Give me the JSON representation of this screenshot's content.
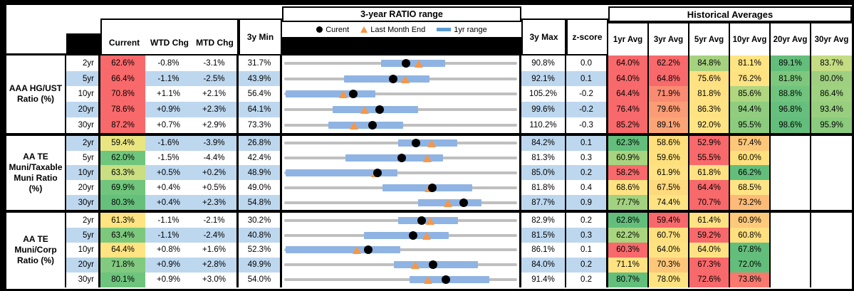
{
  "header": {
    "range_title": "3-year RATIO range",
    "hist_title": "Historical Averages",
    "left_columns": [
      "Current",
      "WTD Chg",
      "MTD Chg"
    ],
    "min_label": "3y Min",
    "max_label": "3y Max",
    "z_label": "z-score",
    "avg_columns": [
      "1yr Avg",
      "3yr Avg",
      "5yr Avg",
      "10yr Avg",
      "20yr Avg",
      "30yr Avg"
    ],
    "legend": {
      "current": "Curent",
      "last_month": "Last Month End",
      "range": "1yr range"
    }
  },
  "colors": {
    "stripe_blue": "#BDD7EE",
    "heat_red": "#F8696B",
    "heat_yellow": "#FFE383",
    "heat_green": "#63BE7B",
    "bar_blue": "#8FB4E3",
    "legend_bar_blue": "#5B9BD5",
    "marker_orange": "#F79646",
    "range_line_gray": "#BFBFBF"
  },
  "chart_data": {
    "type": "table",
    "groups": [
      {
        "label": "AAA HG/UST Ratio (%)",
        "rows": [
          {
            "tenor": "2yr",
            "current": {
              "v": "62.6%",
              "bg": "#F8696B"
            },
            "wtd": "-0.8%",
            "mtd": "-3.1%",
            "min": "31.7%",
            "max": "90.8%",
            "z": "0.0",
            "range": {
              "bar": [
                0.415,
                0.695
              ],
              "dot": 0.523,
              "tri": 0.578
            },
            "avgs": [
              {
                "v": "64.0%",
                "bg": "#F8696B"
              },
              {
                "v": "62.2%",
                "bg": "#F8696B"
              },
              {
                "v": "84.8%",
                "bg": "#A6D27F"
              },
              {
                "v": "81.1%",
                "bg": "#FFE483"
              },
              {
                "v": "89.1%",
                "bg": "#63BE7B"
              },
              {
                "v": "83.7%",
                "bg": "#C4DC82"
              }
            ]
          },
          {
            "tenor": "5yr",
            "current": {
              "v": "66.4%",
              "bg": "#F8696B"
            },
            "wtd": "-1.1%",
            "mtd": "-2.5%",
            "min": "43.9%",
            "max": "92.1%",
            "z": "0.1",
            "range": {
              "bar": [
                0.255,
                0.625
              ],
              "dot": 0.467,
              "tri": 0.519
            },
            "avgs": [
              {
                "v": "64.0%",
                "bg": "#F8696B"
              },
              {
                "v": "64.8%",
                "bg": "#F8696B"
              },
              {
                "v": "75.6%",
                "bg": "#FFE182"
              },
              {
                "v": "76.2%",
                "bg": "#FFE383"
              },
              {
                "v": "81.8%",
                "bg": "#7EC87E"
              },
              {
                "v": "80.0%",
                "bg": "#9ED080"
              }
            ]
          },
          {
            "tenor": "10yr",
            "current": {
              "v": "70.8%",
              "bg": "#F8696B"
            },
            "wtd": "+1.1%",
            "mtd": "+2.1%",
            "min": "56.4%",
            "max": "105.2%",
            "z": "-0.2",
            "range": {
              "bar": [
                0.0,
                0.39
              ],
              "dot": 0.295,
              "tri": 0.252
            },
            "avgs": [
              {
                "v": "64.4%",
                "bg": "#F8696B"
              },
              {
                "v": "71.9%",
                "bg": "#F98B72"
              },
              {
                "v": "81.8%",
                "bg": "#FFE283"
              },
              {
                "v": "85.6%",
                "bg": "#B0D680"
              },
              {
                "v": "88.8%",
                "bg": "#70C47D"
              },
              {
                "v": "86.4%",
                "bg": "#9ED180"
              }
            ]
          },
          {
            "tenor": "20yr",
            "current": {
              "v": "78.6%",
              "bg": "#F8696B"
            },
            "wtd": "+0.9%",
            "mtd": "+2.3%",
            "min": "64.1%",
            "max": "99.6%",
            "z": "-0.2",
            "range": {
              "bar": [
                0.205,
                0.575
              ],
              "dot": 0.408,
              "tri": 0.344
            },
            "avgs": [
              {
                "v": "76.4%",
                "bg": "#F8696B"
              },
              {
                "v": "79.6%",
                "bg": "#FA9C75"
              },
              {
                "v": "86.3%",
                "bg": "#FFE383"
              },
              {
                "v": "94.4%",
                "bg": "#90CD7E"
              },
              {
                "v": "96.8%",
                "bg": "#66BF7C"
              },
              {
                "v": "93.4%",
                "bg": "#98CF7F"
              }
            ]
          },
          {
            "tenor": "30yr",
            "current": {
              "v": "87.2%",
              "bg": "#F8696B"
            },
            "wtd": "+0.7%",
            "mtd": "+2.9%",
            "min": "73.3%",
            "max": "110.2%",
            "z": "-0.3",
            "range": {
              "bar": [
                0.185,
                0.51
              ],
              "dot": 0.377,
              "tri": 0.298
            },
            "avgs": [
              {
                "v": "85.2%",
                "bg": "#F8696B"
              },
              {
                "v": "89.1%",
                "bg": "#FBA577"
              },
              {
                "v": "92.0%",
                "bg": "#FFE483"
              },
              {
                "v": "95.5%",
                "bg": "#8CCC7E"
              },
              {
                "v": "98.6%",
                "bg": "#63BE7B"
              },
              {
                "v": "95.9%",
                "bg": "#8ACB7D"
              }
            ]
          }
        ]
      },
      {
        "label": "AA TE Muni/Taxable Muni Ratio (%)",
        "rows": [
          {
            "tenor": "2yr",
            "current": {
              "v": "59.4%",
              "bg": "#E9E682"
            },
            "wtd": "-1.6%",
            "mtd": "-3.9%",
            "min": "26.8%",
            "max": "84.2%",
            "z": "0.1",
            "range": {
              "bar": [
                0.49,
                0.745
              ],
              "dot": 0.568,
              "tri": 0.636
            },
            "avgs": [
              {
                "v": "62.3%",
                "bg": "#63BE7B"
              },
              {
                "v": "58.6%",
                "bg": "#FFDE7C"
              },
              {
                "v": "52.9%",
                "bg": "#F8696B"
              },
              {
                "v": "57.4%",
                "bg": "#FDC77A"
              },
              {
                "v": "",
                "bg": "#FFFFFF"
              },
              {
                "v": "",
                "bg": "#FFFFFF"
              }
            ]
          },
          {
            "tenor": "5yr",
            "current": {
              "v": "62.0%",
              "bg": "#70C57D"
            },
            "wtd": "-1.5%",
            "mtd": "-4.4%",
            "min": "42.4%",
            "max": "81.3%",
            "z": "0.3",
            "range": {
              "bar": [
                0.26,
                0.685
              ],
              "dot": 0.504,
              "tri": 0.617
            },
            "avgs": [
              {
                "v": "60.9%",
                "bg": "#A8D47F"
              },
              {
                "v": "59.6%",
                "bg": "#FFE07D"
              },
              {
                "v": "55.5%",
                "bg": "#F8696B"
              },
              {
                "v": "60.0%",
                "bg": "#FFE07D"
              },
              {
                "v": "",
                "bg": "#FFFFFF"
              },
              {
                "v": "",
                "bg": "#FFFFFF"
              }
            ]
          },
          {
            "tenor": "10yr",
            "current": {
              "v": "63.3%",
              "bg": "#C9DF81"
            },
            "wtd": "+0.5%",
            "mtd": "+0.2%",
            "min": "48.9%",
            "max": "85.0%",
            "z": "0.2",
            "range": {
              "bar": [
                0.0,
                0.485
              ],
              "dot": 0.399,
              "tri": 0.39
            },
            "avgs": [
              {
                "v": "58.2%",
                "bg": "#F8696B"
              },
              {
                "v": "61.9%",
                "bg": "#FFE283"
              },
              {
                "v": "61.8%",
                "bg": "#FFE182"
              },
              {
                "v": "66.2%",
                "bg": "#63BE7B"
              },
              {
                "v": "",
                "bg": "#FFFFFF"
              },
              {
                "v": "",
                "bg": "#FFFFFF"
              }
            ]
          },
          {
            "tenor": "20yr",
            "current": {
              "v": "69.9%",
              "bg": "#71C57D"
            },
            "wtd": "+0.4%",
            "mtd": "+0.5%",
            "min": "49.0%",
            "max": "81.8%",
            "z": "0.4",
            "range": {
              "bar": [
                0.42,
                0.81
              ],
              "dot": 0.637,
              "tri": 0.622
            },
            "avgs": [
              {
                "v": "68.6%",
                "bg": "#FFE383"
              },
              {
                "v": "67.5%",
                "bg": "#FED97D"
              },
              {
                "v": "64.4%",
                "bg": "#F8696B"
              },
              {
                "v": "68.5%",
                "bg": "#FFE485"
              },
              {
                "v": "",
                "bg": "#FFFFFF"
              },
              {
                "v": "",
                "bg": "#FFFFFF"
              }
            ]
          },
          {
            "tenor": "30yr",
            "current": {
              "v": "80.3%",
              "bg": "#66C07C"
            },
            "wtd": "+0.4%",
            "mtd": "+2.3%",
            "min": "54.8%",
            "max": "87.7%",
            "z": "0.9",
            "range": {
              "bar": [
                0.575,
                0.85
              ],
              "dot": 0.775,
              "tri": 0.705
            },
            "avgs": [
              {
                "v": "77.7%",
                "bg": "#A2D27F"
              },
              {
                "v": "74.4%",
                "bg": "#FFE383"
              },
              {
                "v": "70.7%",
                "bg": "#F8696B"
              },
              {
                "v": "73.2%",
                "bg": "#FCBB78"
              },
              {
                "v": "",
                "bg": "#FFFFFF"
              },
              {
                "v": "",
                "bg": "#FFFFFF"
              }
            ]
          }
        ]
      },
      {
        "label": "AA TE Muni/Corp Ratio (%)",
        "rows": [
          {
            "tenor": "2yr",
            "current": {
              "v": "61.3%",
              "bg": "#FFE481"
            },
            "wtd": "-1.1%",
            "mtd": "-2.1%",
            "min": "30.2%",
            "max": "82.9%",
            "z": "0.2",
            "range": {
              "bar": [
                0.49,
                0.75
              ],
              "dot": 0.59,
              "tri": 0.63
            },
            "avgs": [
              {
                "v": "62.8%",
                "bg": "#63BE7B"
              },
              {
                "v": "59.4%",
                "bg": "#F8696B"
              },
              {
                "v": "61.4%",
                "bg": "#FFE283"
              },
              {
                "v": "60.9%",
                "bg": "#FDC97B"
              },
              {
                "v": "",
                "bg": "#FFFFFF"
              },
              {
                "v": "",
                "bg": "#FFFFFF"
              }
            ]
          },
          {
            "tenor": "5yr",
            "current": {
              "v": "63.4%",
              "bg": "#7EC87E"
            },
            "wtd": "-1.1%",
            "mtd": "-2.4%",
            "min": "40.8%",
            "max": "81.5%",
            "z": "0.3",
            "range": {
              "bar": [
                0.34,
                0.71
              ],
              "dot": 0.555,
              "tri": 0.614
            },
            "avgs": [
              {
                "v": "62.2%",
                "bg": "#A9D57F"
              },
              {
                "v": "60.7%",
                "bg": "#FFE07F"
              },
              {
                "v": "59.2%",
                "bg": "#F8696B"
              },
              {
                "v": "60.8%",
                "bg": "#FFE07F"
              },
              {
                "v": "",
                "bg": "#FFFFFF"
              },
              {
                "v": "",
                "bg": "#FFFFFF"
              }
            ]
          },
          {
            "tenor": "10yr",
            "current": {
              "v": "64.4%",
              "bg": "#FFE481"
            },
            "wtd": "+0.8%",
            "mtd": "+1.6%",
            "min": "52.3%",
            "max": "86.1%",
            "z": "0.1",
            "range": {
              "bar": [
                0.0,
                0.5
              ],
              "dot": 0.358,
              "tri": 0.311
            },
            "avgs": [
              {
                "v": "60.3%",
                "bg": "#F8696B"
              },
              {
                "v": "64.0%",
                "bg": "#FFE383"
              },
              {
                "v": "64.0%",
                "bg": "#FFE383"
              },
              {
                "v": "67.8%",
                "bg": "#63BE7B"
              },
              {
                "v": "",
                "bg": "#FFFFFF"
              },
              {
                "v": "",
                "bg": "#FFFFFF"
              }
            ]
          },
          {
            "tenor": "20yr",
            "current": {
              "v": "71.8%",
              "bg": "#82CA80"
            },
            "wtd": "+0.9%",
            "mtd": "+2.8%",
            "min": "49.9%",
            "max": "84.0%",
            "z": "0.2",
            "range": {
              "bar": [
                0.47,
                0.835
              ],
              "dot": 0.642,
              "tri": 0.563
            },
            "avgs": [
              {
                "v": "71.1%",
                "bg": "#FFE383"
              },
              {
                "v": "70.3%",
                "bg": "#FDC77A"
              },
              {
                "v": "67.3%",
                "bg": "#F8696B"
              },
              {
                "v": "72.0%",
                "bg": "#63BE7B"
              },
              {
                "v": "",
                "bg": "#FFFFFF"
              },
              {
                "v": "",
                "bg": "#FFFFFF"
              }
            ]
          },
          {
            "tenor": "30yr",
            "current": {
              "v": "80.1%",
              "bg": "#6EC47D"
            },
            "wtd": "+0.9%",
            "mtd": "+3.0%",
            "min": "54.0%",
            "max": "91.4%",
            "z": "0.2",
            "range": {
              "bar": [
                0.54,
                0.885
              ],
              "dot": 0.698,
              "tri": 0.618
            },
            "avgs": [
              {
                "v": "80.7%",
                "bg": "#63BE7B"
              },
              {
                "v": "78.0%",
                "bg": "#FFE383"
              },
              {
                "v": "72.6%",
                "bg": "#F8696B"
              },
              {
                "v": "73.8%",
                "bg": "#F9796F"
              },
              {
                "v": "",
                "bg": "#FFFFFF"
              },
              {
                "v": "",
                "bg": "#FFFFFF"
              }
            ]
          }
        ]
      }
    ]
  }
}
